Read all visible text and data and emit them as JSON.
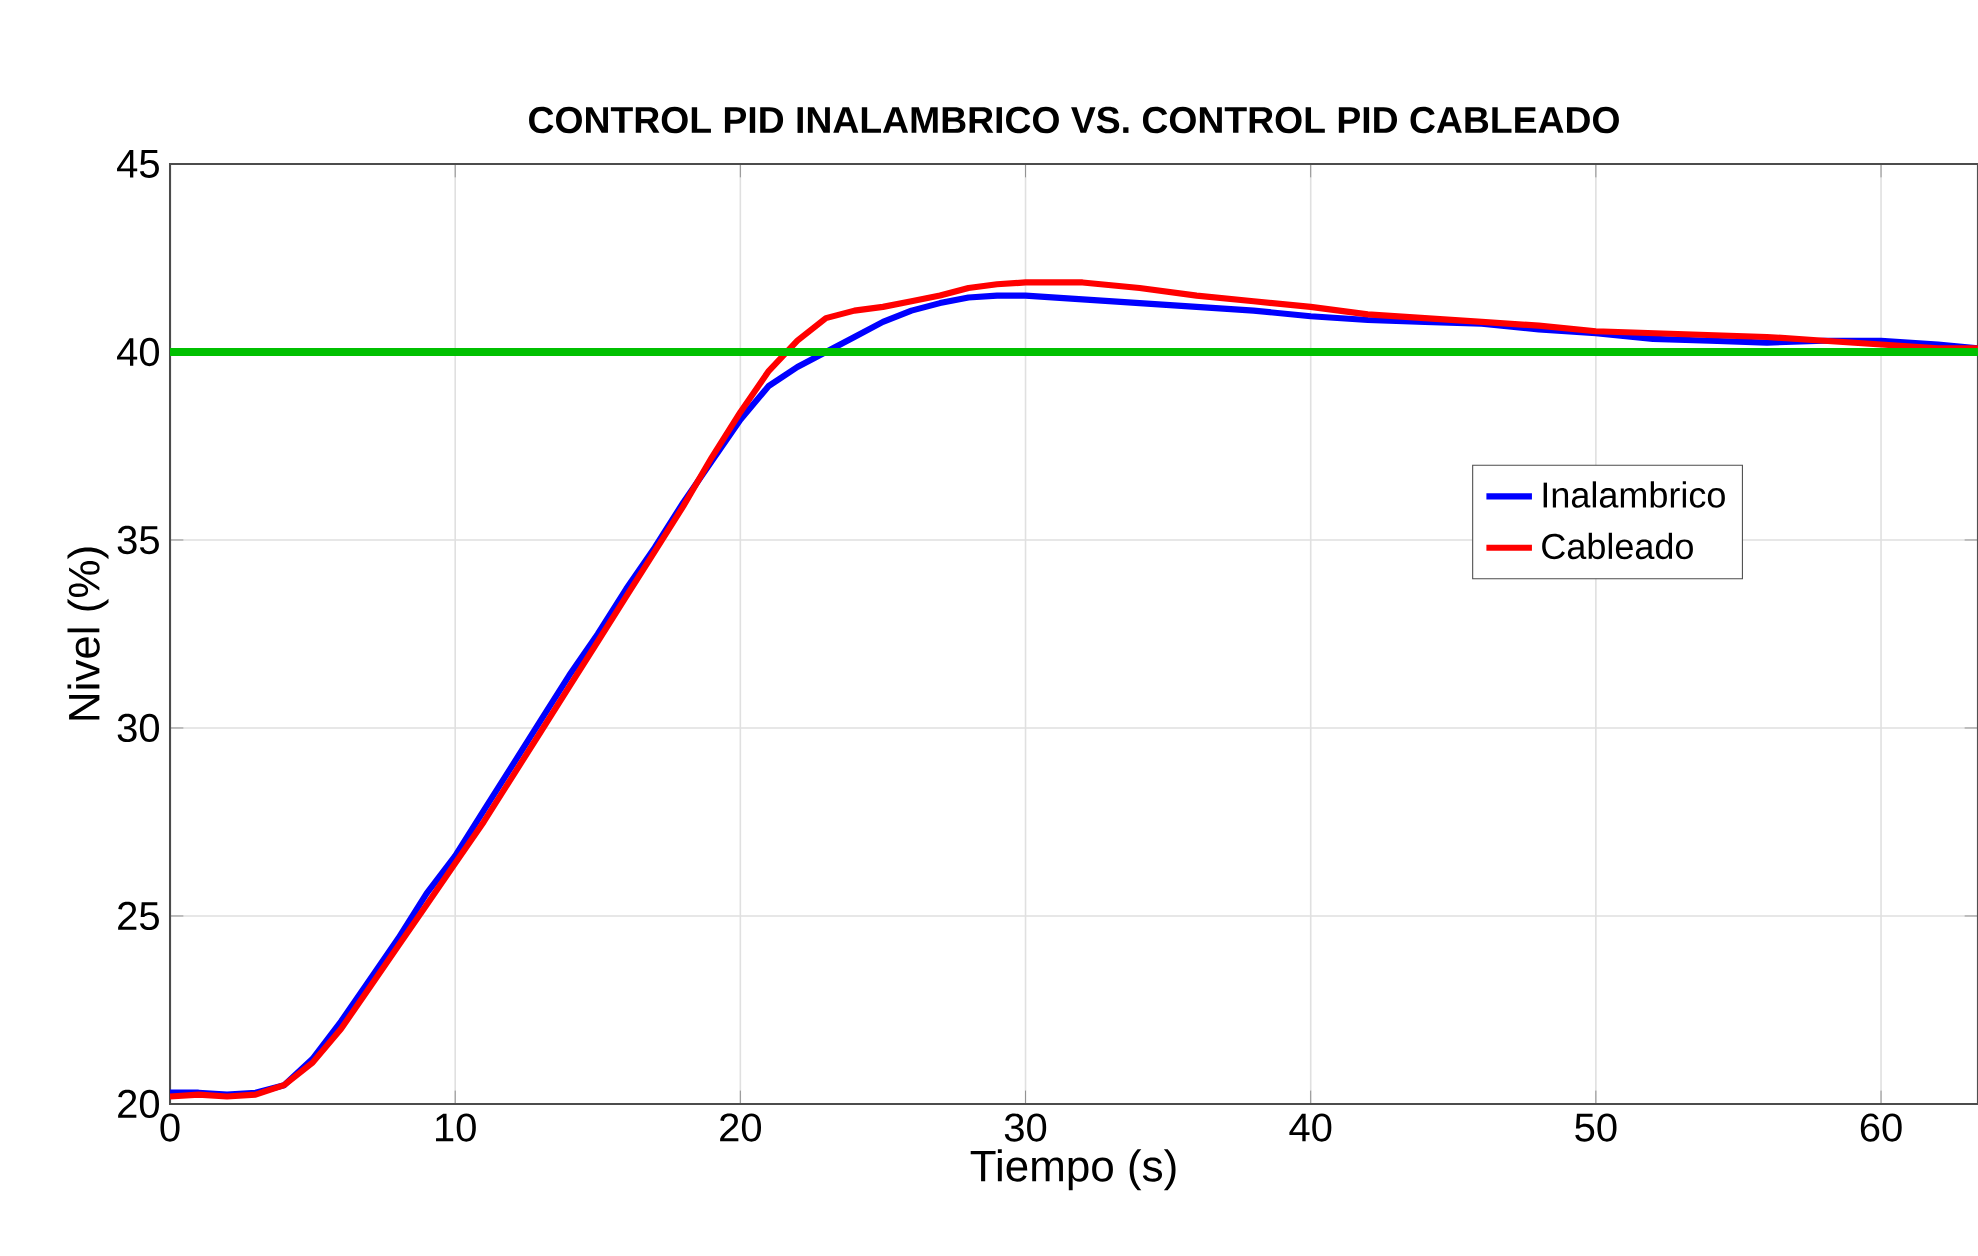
{
  "chart_data": {
    "type": "line",
    "title": "CONTROL PID INALAMBRICO VS. CONTROL PID CABLEADO",
    "xlabel": "Tiempo (s)",
    "ylabel": "Nivel (%)",
    "xlim": [
      0,
      63.4
    ],
    "ylim": [
      20,
      45
    ],
    "xticks": [
      0,
      10,
      20,
      30,
      40,
      50,
      60
    ],
    "yticks": [
      20,
      25,
      30,
      35,
      40,
      45
    ],
    "grid": true,
    "legend": "right",
    "line_style": "solid",
    "marker": "none",
    "ref_lines": [
      {
        "axis": "y",
        "value": 40,
        "color": "#00c000"
      }
    ],
    "series": [
      {
        "name": "Inalambrico",
        "color": "#0000ff",
        "x": [
          0,
          1,
          2,
          3,
          4,
          5,
          6,
          7,
          8,
          9,
          10,
          11,
          12,
          13,
          14,
          15,
          16,
          17,
          18,
          19,
          20,
          21,
          22,
          23,
          24,
          25,
          26,
          27,
          28,
          29,
          30,
          32,
          34,
          36,
          38,
          40,
          42,
          44,
          46,
          48,
          50,
          52,
          54,
          56,
          58,
          60,
          62,
          63.4
        ],
        "values": [
          20.3,
          20.3,
          20.25,
          20.3,
          20.5,
          21.2,
          22.2,
          23.3,
          24.4,
          25.6,
          26.6,
          27.8,
          29,
          30.2,
          31.4,
          32.5,
          33.7,
          34.8,
          36,
          37.1,
          38.2,
          39.1,
          39.6,
          40,
          40.4,
          40.8,
          41.1,
          41.3,
          41.45,
          41.5,
          41.5,
          41.4,
          41.3,
          41.2,
          41.1,
          40.95,
          40.85,
          40.8,
          40.75,
          40.6,
          40.5,
          40.35,
          40.3,
          40.25,
          40.3,
          40.3,
          40.2,
          40.1
        ]
      },
      {
        "name": "Cableado",
        "color": "#ff0000",
        "x": [
          0,
          1,
          2,
          3,
          4,
          5,
          6,
          7,
          8,
          9,
          10,
          11,
          12,
          13,
          14,
          15,
          16,
          17,
          18,
          19,
          20,
          21,
          22,
          23,
          24,
          25,
          26,
          27,
          28,
          29,
          30,
          32,
          34,
          36,
          38,
          40,
          42,
          44,
          46,
          48,
          50,
          52,
          54,
          56,
          58,
          60,
          62,
          63.4
        ],
        "values": [
          20.2,
          20.25,
          20.2,
          20.25,
          20.5,
          21.1,
          22,
          23.1,
          24.2,
          25.3,
          26.4,
          27.5,
          28.7,
          29.9,
          31.1,
          32.3,
          33.5,
          34.7,
          35.9,
          37.2,
          38.4,
          39.5,
          40.3,
          40.9,
          41.1,
          41.2,
          41.35,
          41.5,
          41.7,
          41.8,
          41.85,
          41.85,
          41.7,
          41.5,
          41.35,
          41.2,
          41,
          40.9,
          40.8,
          40.7,
          40.55,
          40.5,
          40.45,
          40.4,
          40.3,
          40.2,
          40.1,
          40.1
        ]
      }
    ]
  }
}
